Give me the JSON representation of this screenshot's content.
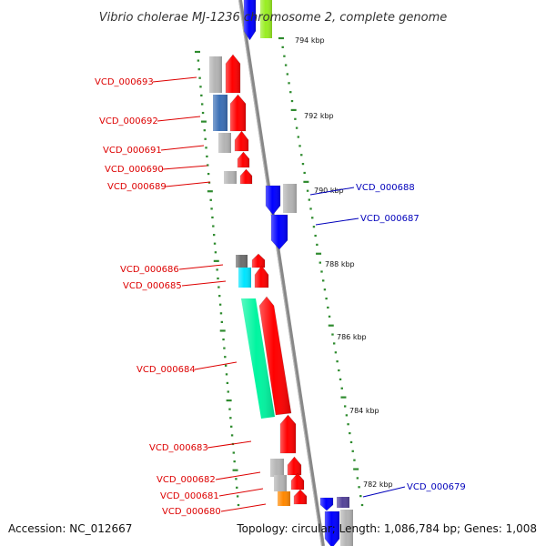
{
  "title": "Vibrio cholerae MJ-1236 chromosome 2, complete genome",
  "accession": "Accession: NC_012667",
  "summary": "Topology: circular; Length: 1,086,784 bp; Genes: 1,008",
  "scale_labels": [
    "794 kbp",
    "792 kbp",
    "790 kbp",
    "788 kbp",
    "786 kbp",
    "784 kbp",
    "782 kbp"
  ],
  "colors": {
    "forward_label": "#dd0000",
    "reverse_label": "#0000bb",
    "forward_gene": "#ff0000",
    "reverse_gene": "#0000ff",
    "backbone": "#888888",
    "tick": "#2e8b2e",
    "cog_grey": "#b4b4b4",
    "cog_dark_grey": "#6e6e6e",
    "cog_blue": "#0000ff",
    "cog_steel": "#3b6fb6",
    "cog_cyan": "#00e5ff",
    "cog_spring_green": "#00f5a0",
    "cog_orange": "#ff8800",
    "cog_lime": "#99ee22",
    "cog_slate": "#554499"
  },
  "genes": [
    {
      "id": "VCD_000693",
      "strand": "+"
    },
    {
      "id": "VCD_000692",
      "strand": "+"
    },
    {
      "id": "VCD_000691",
      "strand": "+"
    },
    {
      "id": "VCD_000690",
      "strand": "+"
    },
    {
      "id": "VCD_000689",
      "strand": "+"
    },
    {
      "id": "VCD_000688",
      "strand": "-"
    },
    {
      "id": "VCD_000687",
      "strand": "-"
    },
    {
      "id": "VCD_000686",
      "strand": "+"
    },
    {
      "id": "VCD_000685",
      "strand": "+"
    },
    {
      "id": "VCD_000684",
      "strand": "+"
    },
    {
      "id": "VCD_000683",
      "strand": "+"
    },
    {
      "id": "VCD_000682",
      "strand": "+"
    },
    {
      "id": "VCD_000681",
      "strand": "+"
    },
    {
      "id": "VCD_000680",
      "strand": "+"
    },
    {
      "id": "VCD_000679",
      "strand": "-"
    }
  ]
}
